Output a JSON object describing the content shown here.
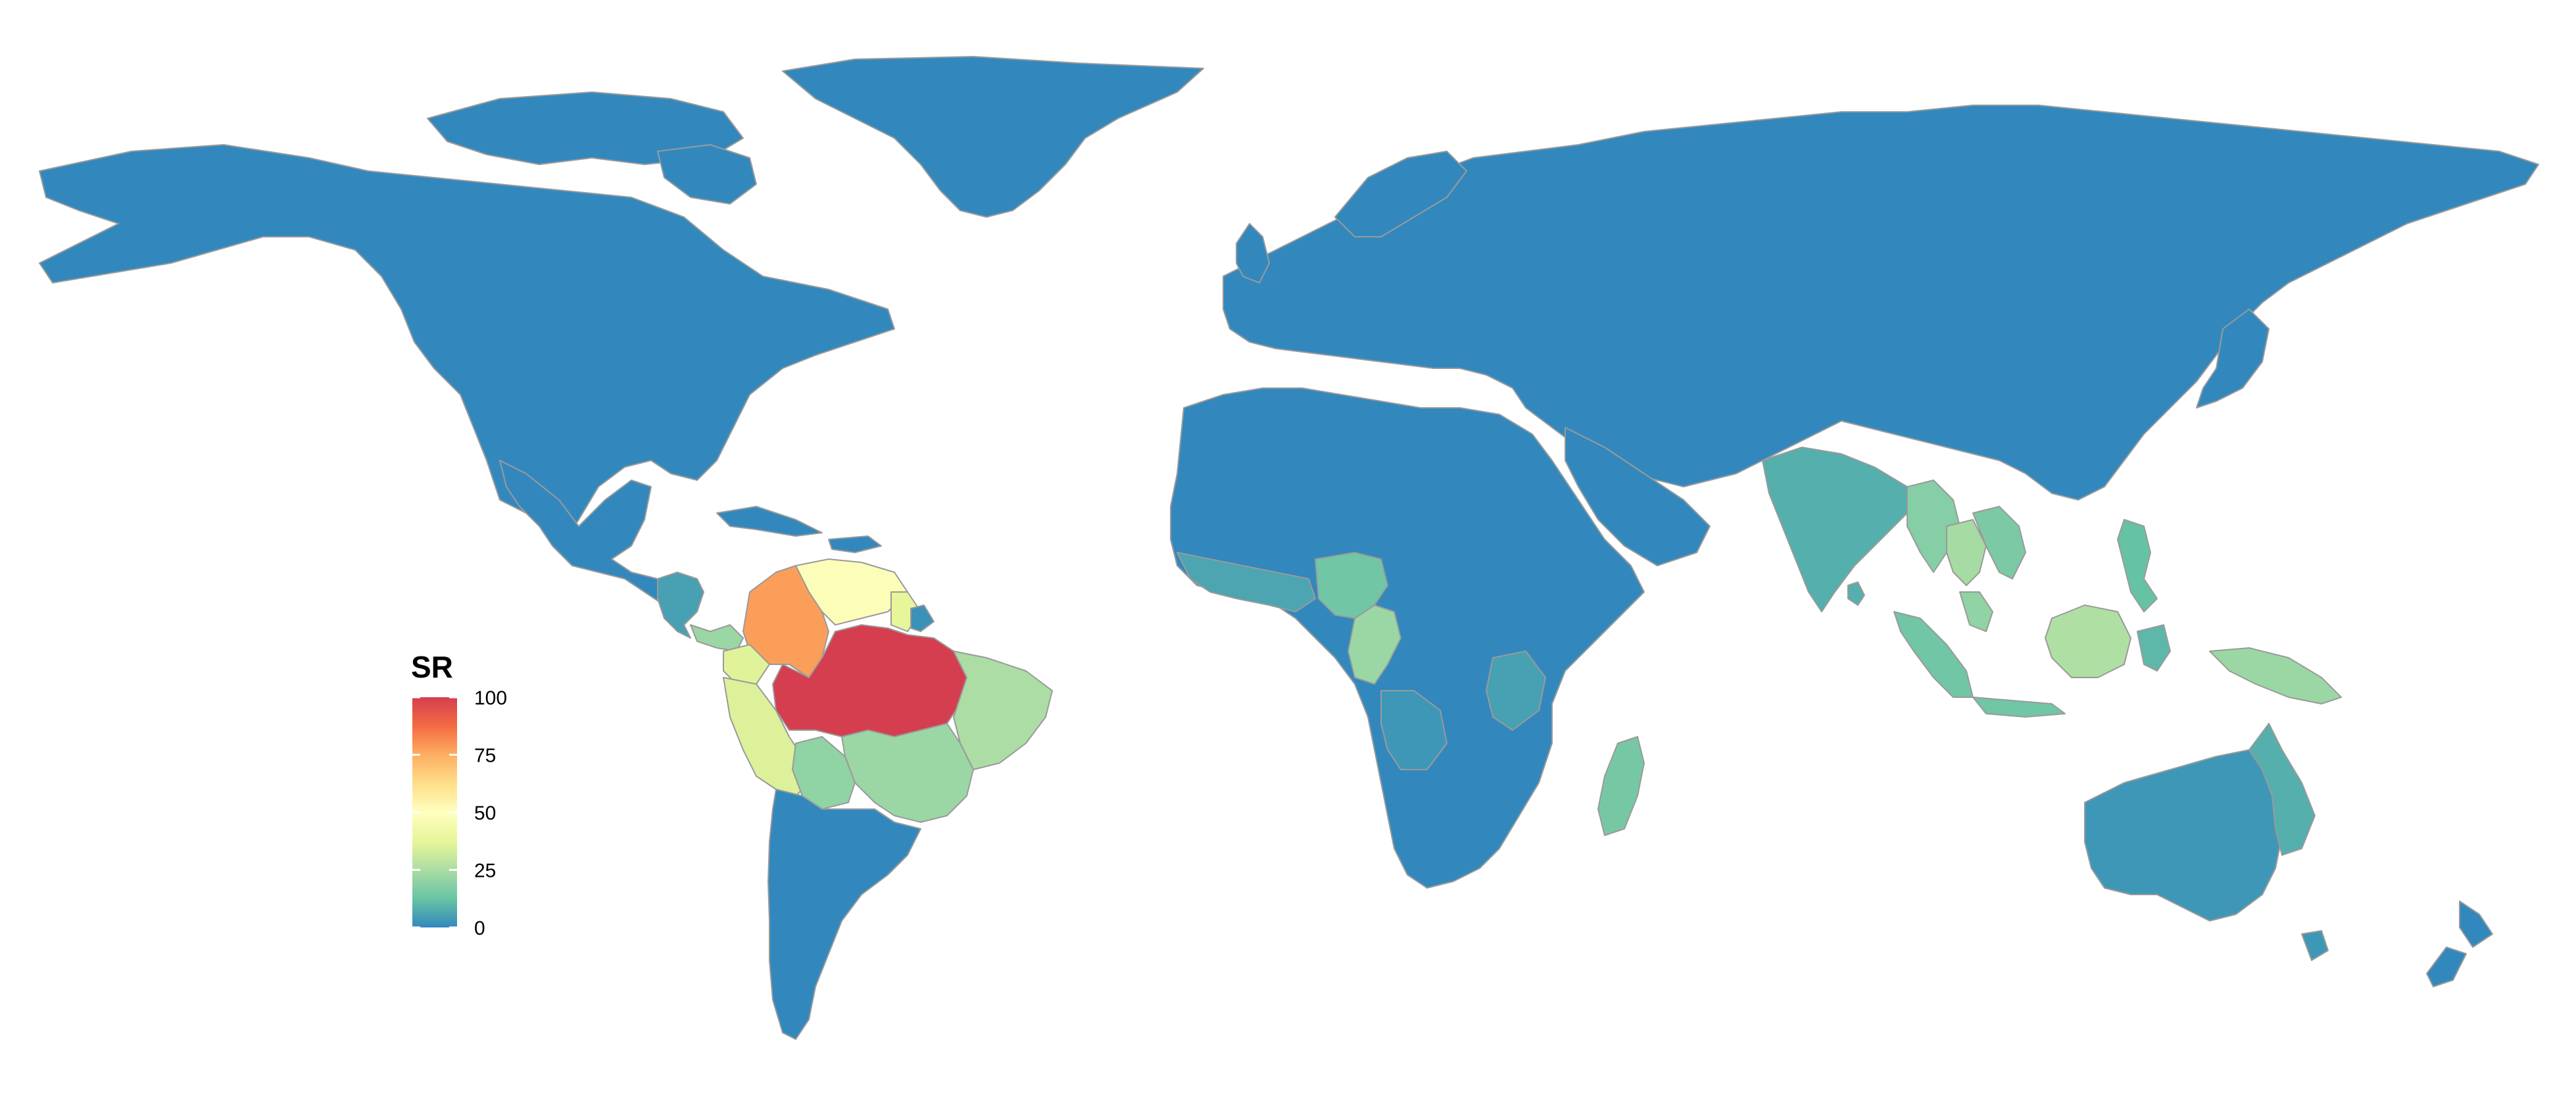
{
  "legend": {
    "title": "SR",
    "min": 0,
    "max": 100,
    "ticks": [
      {
        "value": 0,
        "label": "0"
      },
      {
        "value": 25,
        "label": "25"
      },
      {
        "value": 50,
        "label": "50"
      },
      {
        "value": 75,
        "label": "75"
      },
      {
        "value": 100,
        "label": "100"
      }
    ],
    "gradient_stops": [
      {
        "value": 0,
        "color": "#3288bd"
      },
      {
        "value": 12,
        "color": "#66c2a5"
      },
      {
        "value": 25,
        "color": "#abdda4"
      },
      {
        "value": 37,
        "color": "#e6f598"
      },
      {
        "value": 50,
        "color": "#ffffbf"
      },
      {
        "value": 62,
        "color": "#fee08b"
      },
      {
        "value": 75,
        "color": "#fdae61"
      },
      {
        "value": 87,
        "color": "#f46d43"
      },
      {
        "value": 100,
        "color": "#d53e4f"
      }
    ]
  },
  "colors": {
    "background": "#ffffff",
    "ocean": "#ffffff",
    "border": "#9a9a9a"
  },
  "regions": [
    {
      "name": "Greenland",
      "value": 0
    },
    {
      "name": "North America",
      "value": 0
    },
    {
      "name": "Mexico",
      "value": 0
    },
    {
      "name": "Central America",
      "value": 5
    },
    {
      "name": "Panama",
      "value": 22
    },
    {
      "name": "Colombia",
      "value": 78
    },
    {
      "name": "Venezuela",
      "value": 48
    },
    {
      "name": "Guyana",
      "value": 38
    },
    {
      "name": "Suriname",
      "value": 2
    },
    {
      "name": "Ecuador",
      "value": 36
    },
    {
      "name": "Peru",
      "value": 35
    },
    {
      "name": "Amazonas",
      "value": 100
    },
    {
      "name": "Brazil Northeast",
      "value": 25
    },
    {
      "name": "Brazil Central",
      "value": 22
    },
    {
      "name": "Bolivia",
      "value": 20
    },
    {
      "name": "Southern South America",
      "value": 0
    },
    {
      "name": "Europe and Asia",
      "value": 0
    },
    {
      "name": "Africa",
      "value": 0
    },
    {
      "name": "West Africa",
      "value": 6
    },
    {
      "name": "Central Africa",
      "value": 14
    },
    {
      "name": "Congo",
      "value": 22
    },
    {
      "name": "East Africa",
      "value": 5
    },
    {
      "name": "Angola",
      "value": 3
    },
    {
      "name": "Madagascar",
      "value": 15
    },
    {
      "name": "India",
      "value": 8
    },
    {
      "name": "Myanmar",
      "value": 18
    },
    {
      "name": "Thailand",
      "value": 24
    },
    {
      "name": "Vietnam",
      "value": 16
    },
    {
      "name": "Malaysia",
      "value": 20
    },
    {
      "name": "Sumatra",
      "value": 14
    },
    {
      "name": "Borneo",
      "value": 26
    },
    {
      "name": "Philippines",
      "value": 12
    },
    {
      "name": "Sulawesi",
      "value": 10
    },
    {
      "name": "New Guinea",
      "value": 22
    },
    {
      "name": "Australia",
      "value": 3
    },
    {
      "name": "Queensland",
      "value": 8
    },
    {
      "name": "New Zealand",
      "value": 0
    },
    {
      "name": "Japan",
      "value": 0
    }
  ]
}
